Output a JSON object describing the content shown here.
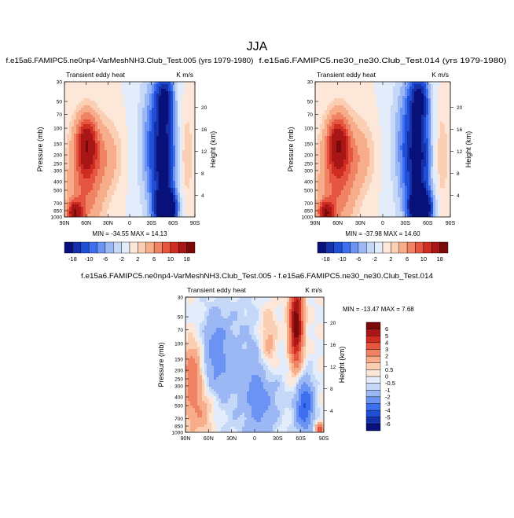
{
  "figure": {
    "title": "JJA"
  },
  "colors": {
    "levels_main": [
      "#08107a",
      "#1530a8",
      "#1e4fd6",
      "#3d6ff0",
      "#6b93f3",
      "#9bb8f5",
      "#c6d8f8",
      "#e3ecfb",
      "#fde7d8",
      "#fbcfb4",
      "#f7ad8a",
      "#f08363",
      "#e6553f",
      "#cf2c22",
      "#a81616",
      "#7a0a0a"
    ],
    "levels_diff": [
      "#08107a",
      "#1530a8",
      "#1e4fd6",
      "#3d6ff0",
      "#6b93f3",
      "#9bb8f5",
      "#c6d8f8",
      "#e3ecfb",
      "#fde7d8",
      "#fbcfb4",
      "#f7ad8a",
      "#f08363",
      "#e6553f",
      "#cf2c22",
      "#a81616",
      "#7a0a0a"
    ]
  },
  "chart_data": [
    {
      "type": "heatmap",
      "title": "f.e15a6.FAMIPC5.ne0np4-VarMeshNH3.Club_Test.005 (yrs 1979-1980)",
      "left_label": "Transient eddy heat",
      "right_label": "K m/s",
      "ylabel": "Pressure (mb)",
      "y2label": "Height (km)",
      "xticks": [
        "90N",
        "60N",
        "30N",
        "0",
        "30S",
        "60S",
        "90S"
      ],
      "yticks": [
        "30",
        "50",
        "70",
        "100",
        "150",
        "200",
        "250",
        "300",
        "400",
        "500",
        "700",
        "850",
        "1000"
      ],
      "y2ticks": [
        "4",
        "8",
        "12",
        "16",
        "20"
      ],
      "stats": "MIN = -34.55   MAX = 14.13",
      "min": -34.55,
      "max": 14.13
    },
    {
      "type": "heatmap",
      "title": "f.e15a6.FAMIPC5.ne30_ne30.Club_Test.014 (yrs 1979-1980)",
      "left_label": "Transient eddy heat",
      "right_label": "K m/s",
      "ylabel": "Pressure (mb)",
      "y2label": "Height (km)",
      "xticks": [
        "90N",
        "60N",
        "30N",
        "0",
        "30S",
        "60S",
        "90S"
      ],
      "yticks": [
        "30",
        "50",
        "70",
        "100",
        "150",
        "200",
        "250",
        "300",
        "400",
        "500",
        "700",
        "850",
        "1000"
      ],
      "y2ticks": [
        "4",
        "8",
        "12",
        "16",
        "20"
      ],
      "stats": "MIN = -37.98   MAX = 14.60",
      "min": -37.98,
      "max": 14.6
    },
    {
      "type": "heatmap",
      "title": "f.e15a6.FAMIPC5.ne0np4-VarMeshNH3.Club_Test.005 - f.e15a6.FAMIPC5.ne30_ne30.Club_Test.014",
      "left_label": "Transient eddy heat",
      "right_label": "K m/s",
      "ylabel": "Pressure (mb)",
      "y2label": "Height (km)",
      "xticks": [
        "90N",
        "60N",
        "30N",
        "0",
        "30S",
        "60S",
        "90S"
      ],
      "yticks": [
        "30",
        "50",
        "70",
        "100",
        "150",
        "200",
        "250",
        "300",
        "400",
        "500",
        "700",
        "850",
        "1000"
      ],
      "y2ticks": [
        "4",
        "8",
        "12",
        "16",
        "20"
      ],
      "stats": "MIN = -13.47   MAX =   7.68",
      "min": -13.47,
      "max": 7.68
    }
  ],
  "colorbars": {
    "main_labels": [
      "-18",
      "-10",
      "-6",
      "-2",
      "2",
      "6",
      "10",
      "18"
    ],
    "diff_labels": [
      "6",
      "5",
      "4",
      "3",
      "2",
      "1",
      "0.5",
      "0",
      "-0.5",
      "-1",
      "-2",
      "-3",
      "-4",
      "-5",
      "-6"
    ]
  }
}
